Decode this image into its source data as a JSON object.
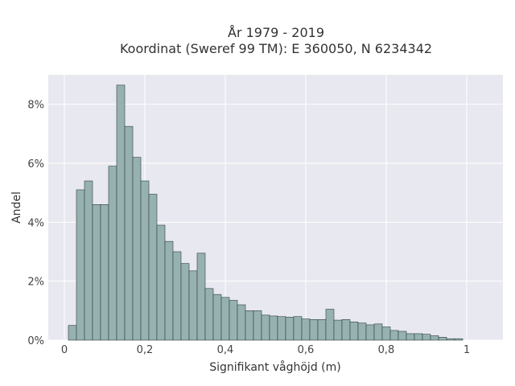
{
  "chart_data": {
    "type": "bar",
    "title_line1": "År 1979 - 2019",
    "title_line2": "Koordinat (Sweref 99 TM): E 360050, N 6234342",
    "xlabel": "Signifikant våghöjd (m)",
    "ylabel": "Andel",
    "xlim": [
      -0.04,
      1.09
    ],
    "ylim": [
      0,
      9.0
    ],
    "x_ticks": [
      {
        "value": 0,
        "label": "0"
      },
      {
        "value": 0.2,
        "label": "0,2"
      },
      {
        "value": 0.4,
        "label": "0,4"
      },
      {
        "value": 0.6,
        "label": "0,6"
      },
      {
        "value": 0.8,
        "label": "0,8"
      },
      {
        "value": 1.0,
        "label": "1"
      }
    ],
    "y_ticks": [
      {
        "value": 0,
        "label": "0%"
      },
      {
        "value": 2,
        "label": "2%"
      },
      {
        "value": 4,
        "label": "4%"
      },
      {
        "value": 6,
        "label": "6%"
      },
      {
        "value": 8,
        "label": "8%"
      }
    ],
    "grid": true,
    "bin_start": 0.01,
    "bin_width": 0.02,
    "values": [
      0.5,
      5.1,
      5.4,
      4.6,
      4.6,
      5.9,
      8.65,
      7.25,
      6.2,
      5.4,
      4.95,
      3.9,
      3.35,
      3.0,
      2.6,
      2.35,
      2.95,
      1.75,
      1.55,
      1.45,
      1.35,
      1.2,
      1.0,
      1.0,
      0.85,
      0.82,
      0.8,
      0.78,
      0.8,
      0.72,
      0.7,
      0.7,
      1.05,
      0.68,
      0.7,
      0.62,
      0.58,
      0.52,
      0.55,
      0.45,
      0.33,
      0.3,
      0.22,
      0.22,
      0.2,
      0.15,
      0.1,
      0.05,
      0.05
    ],
    "colors": {
      "bar_fill": "#97B1B1",
      "bar_stroke": "#2E4040",
      "plot_bg": "#E8E8F0",
      "grid": "#FFFFFF"
    }
  }
}
